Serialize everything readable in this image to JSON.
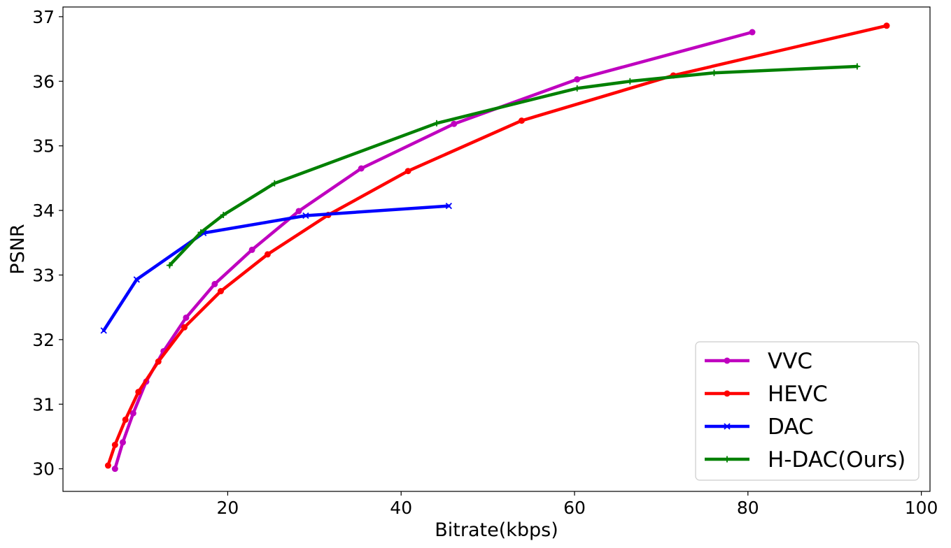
{
  "chart_data": {
    "type": "line",
    "title": "",
    "xlabel": "Bitrate(kbps)",
    "ylabel": "PSNR",
    "xlim": [
      1,
      101
    ],
    "ylim": [
      29.65,
      37.15
    ],
    "xticks": [
      20,
      40,
      60,
      80,
      100
    ],
    "yticks": [
      30,
      31,
      32,
      33,
      34,
      35,
      36,
      37
    ],
    "grid": false,
    "legend_position": "lower-right",
    "series": [
      {
        "name": "VVC",
        "color": "#bf00bf",
        "marker": "circle",
        "x": [
          7.0,
          7.9,
          9.1,
          10.6,
          12.6,
          15.2,
          18.5,
          22.8,
          28.2,
          35.4,
          46.1,
          60.3,
          80.5
        ],
        "y": [
          30.0,
          30.41,
          30.86,
          31.35,
          31.82,
          32.34,
          32.86,
          33.39,
          33.99,
          34.65,
          35.34,
          36.03,
          36.76
        ]
      },
      {
        "name": "HEVC",
        "color": "#ff0000",
        "marker": "circle",
        "x": [
          6.2,
          7.0,
          8.2,
          9.7,
          12.0,
          15.0,
          19.2,
          24.6,
          31.6,
          40.8,
          53.9,
          71.4,
          96.0
        ],
        "y": [
          30.05,
          30.37,
          30.76,
          31.19,
          31.66,
          32.19,
          32.75,
          33.32,
          33.93,
          34.61,
          35.39,
          36.09,
          36.86
        ]
      },
      {
        "name": "DAC",
        "color": "#0000ff",
        "marker": "x",
        "x": [
          5.7,
          9.5,
          17.2,
          29.0,
          45.5
        ],
        "y": [
          32.14,
          32.93,
          33.65,
          33.92,
          34.07
        ]
      },
      {
        "name": "H-DAC(Ours)",
        "color": "#008000",
        "marker": "plus",
        "x": [
          13.3,
          16.9,
          19.5,
          25.4,
          44.1,
          60.3,
          66.4,
          76.1,
          92.6
        ],
        "y": [
          33.15,
          33.66,
          33.93,
          34.42,
          35.35,
          35.89,
          36.0,
          36.13,
          36.23
        ]
      }
    ]
  }
}
